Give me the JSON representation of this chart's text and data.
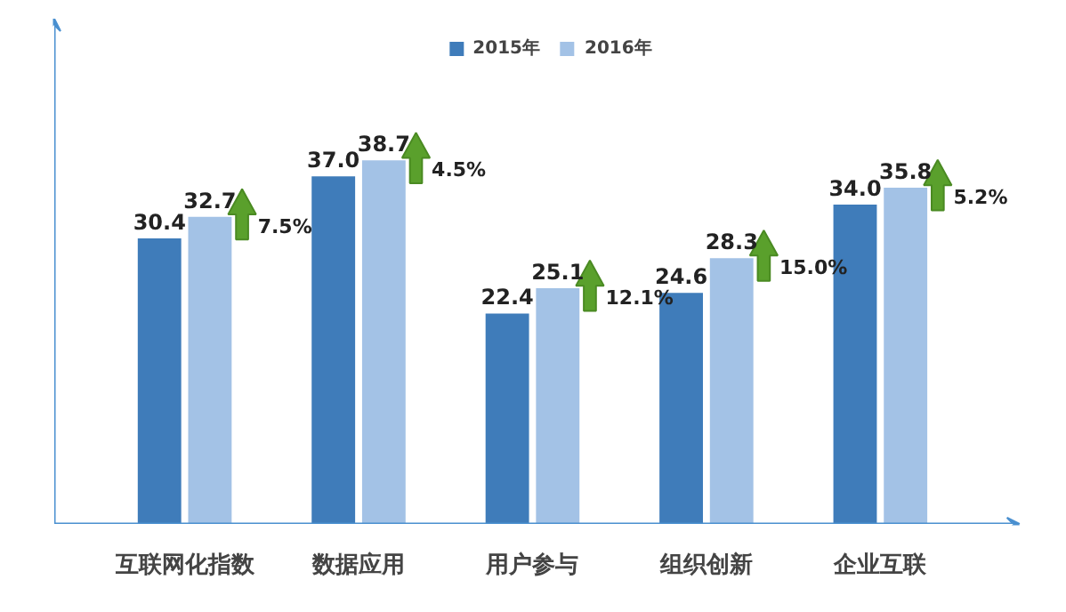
{
  "chart_data": {
    "type": "bar",
    "categories": [
      "互联网化指数",
      "数据应用",
      "用户参与",
      "组织创新",
      "企业互联"
    ],
    "series": [
      {
        "name": "2015年",
        "color": "#3f7cba",
        "values": [
          30.4,
          37.0,
          22.4,
          24.6,
          34.0
        ],
        "value_labels": [
          "30.4",
          "37.0",
          "22.4",
          "24.6",
          "34.0"
        ]
      },
      {
        "name": "2016年",
        "color": "#a3c2e6",
        "values": [
          32.7,
          38.7,
          25.1,
          28.3,
          35.8
        ],
        "value_labels": [
          "32.7",
          "38.7",
          "25.1",
          "28.3",
          "35.8"
        ]
      }
    ],
    "annotations": [
      "7.5%",
      "4.5%",
      "12.1%",
      "15.0%",
      "5.2%"
    ],
    "legend": "top",
    "grid": false
  }
}
